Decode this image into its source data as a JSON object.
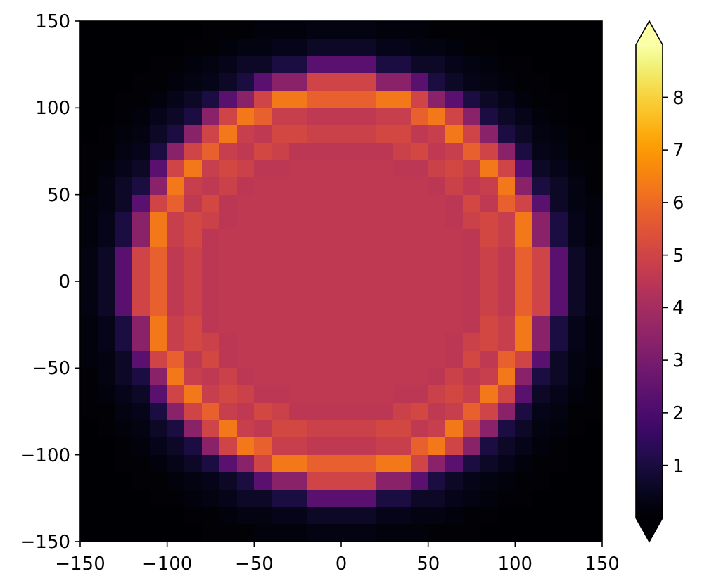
{
  "chart_data": {
    "type": "heatmap",
    "xlim": [
      -150,
      150
    ],
    "ylim": [
      -150,
      150
    ],
    "xticks": [
      -150,
      -100,
      -50,
      0,
      50,
      100,
      150
    ],
    "yticks": [
      -150,
      -100,
      -50,
      0,
      50,
      100,
      150
    ],
    "clim": [
      0,
      9
    ],
    "cticks": [
      1,
      2,
      3,
      4,
      5,
      6,
      7,
      8
    ],
    "cells": [
      [
        0,
        0,
        0,
        0,
        0,
        0,
        0,
        0.1,
        0.1,
        0.1,
        0.2,
        0.2,
        0.2,
        0.3,
        0.3,
        0.3,
        0.3,
        0.2,
        0.2,
        0.2,
        0.1,
        0.1,
        0.1,
        0,
        0,
        0,
        0,
        0,
        0,
        0
      ],
      [
        0,
        0,
        0,
        0,
        0,
        0,
        0.1,
        0.1,
        0.2,
        0.3,
        0.3,
        0.4,
        0.4,
        0.6,
        0.6,
        0.6,
        0.6,
        0.4,
        0.4,
        0.3,
        0.3,
        0.2,
        0.1,
        0.1,
        0,
        0,
        0,
        0,
        0,
        0
      ],
      [
        0,
        0,
        0,
        0,
        0.1,
        0.1,
        0.2,
        0.3,
        0.4,
        0.6,
        0.6,
        1,
        1,
        2.3,
        2.3,
        2.3,
        2.3,
        1,
        1,
        0.6,
        0.6,
        0.4,
        0.3,
        0.2,
        0.1,
        0.1,
        0,
        0,
        0,
        0
      ],
      [
        0,
        0,
        0,
        0.1,
        0.1,
        0.2,
        0.3,
        0.4,
        0.6,
        1,
        2.3,
        3.4,
        3.4,
        5,
        5,
        5,
        5,
        3.4,
        3.4,
        2.3,
        1,
        0.6,
        0.4,
        0.3,
        0.2,
        0.1,
        0.1,
        0,
        0,
        0
      ],
      [
        0,
        0,
        0.1,
        0.1,
        0.2,
        0.4,
        0.6,
        1,
        2.3,
        3.4,
        5,
        6.3,
        6.3,
        5.8,
        5.8,
        5.8,
        5.8,
        6.3,
        6.3,
        5,
        3.4,
        2.3,
        1,
        0.6,
        0.4,
        0.2,
        0.1,
        0.1,
        0,
        0
      ],
      [
        0,
        0,
        0.1,
        0.2,
        0.4,
        0.6,
        1,
        3.4,
        5,
        6.3,
        5.8,
        4.8,
        4.8,
        4.6,
        4.6,
        4.6,
        4.6,
        4.8,
        4.8,
        5.8,
        6.3,
        5,
        3.4,
        1,
        0.6,
        0.4,
        0.2,
        0.1,
        0,
        0
      ],
      [
        0,
        0.1,
        0.2,
        0.3,
        0.6,
        1,
        3.4,
        5,
        6.3,
        4.8,
        4.6,
        5.1,
        5.1,
        4.9,
        4.9,
        4.9,
        4.9,
        5.1,
        5.1,
        4.6,
        4.8,
        6.3,
        5,
        3.4,
        1,
        0.6,
        0.3,
        0.2,
        0.1,
        0
      ],
      [
        0.1,
        0.1,
        0.3,
        0.4,
        1,
        3.4,
        5,
        5.8,
        4.8,
        4.6,
        5.1,
        4.9,
        4.5,
        4.5,
        4.5,
        4.5,
        4.5,
        4.5,
        4.9,
        5.1,
        4.6,
        4.8,
        5.8,
        5,
        3.4,
        1,
        0.4,
        0.3,
        0.1,
        0.1
      ],
      [
        0.1,
        0.2,
        0.4,
        0.6,
        2.3,
        5,
        6.3,
        4.8,
        5.1,
        4.9,
        4.5,
        4.5,
        4.6,
        4.6,
        4.6,
        4.6,
        4.6,
        4.6,
        4.5,
        4.5,
        4.9,
        5.1,
        4.8,
        6.3,
        5,
        2.3,
        0.6,
        0.4,
        0.2,
        0.1
      ],
      [
        0.1,
        0.3,
        0.6,
        1,
        3.4,
        6.3,
        4.8,
        4.6,
        4.9,
        4.5,
        4.6,
        4.6,
        4.6,
        4.6,
        4.6,
        4.6,
        4.6,
        4.6,
        4.6,
        4.6,
        4.5,
        4.9,
        4.6,
        4.8,
        6.3,
        3.4,
        1,
        0.6,
        0.3,
        0.1
      ],
      [
        0.2,
        0.3,
        0.6,
        2.3,
        5,
        5.8,
        4.6,
        5.1,
        4.5,
        4.6,
        4.6,
        4.6,
        4.6,
        4.6,
        4.6,
        4.6,
        4.6,
        4.6,
        4.6,
        4.6,
        4.6,
        4.5,
        5.1,
        4.6,
        5.8,
        5,
        2.3,
        0.6,
        0.3,
        0.2
      ],
      [
        0.2,
        0.4,
        1,
        3.4,
        6.3,
        4.8,
        5.1,
        4.9,
        4.5,
        4.6,
        4.6,
        4.6,
        4.6,
        4.6,
        4.6,
        4.6,
        4.6,
        4.6,
        4.6,
        4.6,
        4.6,
        4.5,
        4.9,
        5.1,
        4.8,
        6.3,
        3.4,
        1,
        0.4,
        0.2
      ],
      [
        0.2,
        0.4,
        1,
        3.4,
        6.3,
        4.8,
        5.1,
        4.5,
        4.6,
        4.6,
        4.6,
        4.6,
        4.6,
        4.6,
        4.6,
        4.6,
        4.6,
        4.6,
        4.6,
        4.6,
        4.6,
        4.6,
        4.5,
        5.1,
        4.8,
        6.3,
        3.4,
        1,
        0.4,
        0.2
      ],
      [
        0.3,
        0.6,
        2.3,
        5,
        5.8,
        4.6,
        4.9,
        4.5,
        4.6,
        4.6,
        4.6,
        4.6,
        4.6,
        4.6,
        4.6,
        4.6,
        4.6,
        4.6,
        4.6,
        4.6,
        4.6,
        4.6,
        4.5,
        4.9,
        4.6,
        5.8,
        5,
        2.3,
        0.6,
        0.3
      ],
      [
        0.3,
        0.6,
        2.3,
        5,
        5.8,
        4.6,
        4.9,
        4.5,
        4.6,
        4.6,
        4.6,
        4.6,
        4.6,
        4.6,
        4.6,
        4.6,
        4.6,
        4.6,
        4.6,
        4.6,
        4.6,
        4.6,
        4.5,
        4.9,
        4.6,
        5.8,
        5,
        2.3,
        0.6,
        0.3
      ],
      [
        0.3,
        0.6,
        2.3,
        5,
        5.8,
        4.6,
        4.9,
        4.5,
        4.6,
        4.6,
        4.6,
        4.6,
        4.6,
        4.6,
        4.6,
        4.6,
        4.6,
        4.6,
        4.6,
        4.6,
        4.6,
        4.6,
        4.5,
        4.9,
        4.6,
        5.8,
        5,
        2.3,
        0.6,
        0.3
      ],
      [
        0.3,
        0.6,
        2.3,
        5,
        5.8,
        4.6,
        4.9,
        4.5,
        4.6,
        4.6,
        4.6,
        4.6,
        4.6,
        4.6,
        4.6,
        4.6,
        4.6,
        4.6,
        4.6,
        4.6,
        4.6,
        4.6,
        4.5,
        4.9,
        4.6,
        5.8,
        5,
        2.3,
        0.6,
        0.3
      ],
      [
        0.2,
        0.4,
        1,
        3.4,
        6.3,
        4.8,
        5.1,
        4.5,
        4.6,
        4.6,
        4.6,
        4.6,
        4.6,
        4.6,
        4.6,
        4.6,
        4.6,
        4.6,
        4.6,
        4.6,
        4.6,
        4.6,
        4.5,
        5.1,
        4.8,
        6.3,
        3.4,
        1,
        0.4,
        0.2
      ],
      [
        0.2,
        0.4,
        1,
        3.4,
        6.3,
        4.8,
        5.1,
        4.9,
        4.5,
        4.6,
        4.6,
        4.6,
        4.6,
        4.6,
        4.6,
        4.6,
        4.6,
        4.6,
        4.6,
        4.6,
        4.6,
        4.5,
        4.9,
        5.1,
        4.8,
        6.3,
        3.4,
        1,
        0.4,
        0.2
      ],
      [
        0.2,
        0.3,
        0.6,
        2.3,
        5,
        5.8,
        4.6,
        5.1,
        4.5,
        4.6,
        4.6,
        4.6,
        4.6,
        4.6,
        4.6,
        4.6,
        4.6,
        4.6,
        4.6,
        4.6,
        4.6,
        4.5,
        5.1,
        4.6,
        5.8,
        5,
        2.3,
        0.6,
        0.3,
        0.2
      ],
      [
        0.1,
        0.3,
        0.6,
        1,
        3.4,
        6.3,
        4.8,
        4.6,
        4.9,
        4.5,
        4.6,
        4.6,
        4.6,
        4.6,
        4.6,
        4.6,
        4.6,
        4.6,
        4.6,
        4.6,
        4.5,
        4.9,
        4.6,
        4.8,
        6.3,
        3.4,
        1,
        0.6,
        0.3,
        0.1
      ],
      [
        0.1,
        0.2,
        0.4,
        0.6,
        2.3,
        5,
        6.3,
        4.8,
        5.1,
        4.9,
        4.5,
        4.5,
        4.6,
        4.6,
        4.6,
        4.6,
        4.6,
        4.6,
        4.5,
        4.5,
        4.9,
        5.1,
        4.8,
        6.3,
        5,
        2.3,
        0.6,
        0.4,
        0.2,
        0.1
      ],
      [
        0.1,
        0.1,
        0.3,
        0.4,
        1,
        3.4,
        5,
        5.8,
        4.8,
        4.6,
        5.1,
        4.9,
        4.5,
        4.5,
        4.5,
        4.5,
        4.5,
        4.5,
        4.9,
        5.1,
        4.6,
        4.8,
        5.8,
        5,
        3.4,
        1,
        0.4,
        0.3,
        0.1,
        0.1
      ],
      [
        0,
        0.1,
        0.2,
        0.3,
        0.6,
        1,
        3.4,
        5,
        6.3,
        4.8,
        4.6,
        5.1,
        5.1,
        4.9,
        4.9,
        4.9,
        4.9,
        5.1,
        5.1,
        4.6,
        4.8,
        6.3,
        5,
        3.4,
        1,
        0.6,
        0.3,
        0.2,
        0.1,
        0
      ],
      [
        0,
        0,
        0.1,
        0.2,
        0.4,
        0.6,
        1,
        3.4,
        5,
        6.3,
        5.8,
        4.8,
        4.8,
        4.6,
        4.6,
        4.6,
        4.6,
        4.8,
        4.8,
        5.8,
        6.3,
        5,
        3.4,
        1,
        0.6,
        0.4,
        0.2,
        0.1,
        0,
        0
      ],
      [
        0,
        0,
        0.1,
        0.1,
        0.2,
        0.4,
        0.6,
        1,
        2.3,
        3.4,
        5,
        6.3,
        6.3,
        5.8,
        5.8,
        5.8,
        5.8,
        6.3,
        6.3,
        5,
        3.4,
        2.3,
        1,
        0.6,
        0.4,
        0.2,
        0.1,
        0.1,
        0,
        0
      ],
      [
        0,
        0,
        0,
        0.1,
        0.1,
        0.2,
        0.3,
        0.4,
        0.6,
        1,
        2.3,
        3.4,
        3.4,
        5,
        5,
        5,
        5,
        3.4,
        3.4,
        2.3,
        1,
        0.6,
        0.4,
        0.3,
        0.2,
        0.1,
        0.1,
        0,
        0,
        0
      ],
      [
        0,
        0,
        0,
        0,
        0.1,
        0.1,
        0.2,
        0.3,
        0.4,
        0.6,
        0.6,
        1,
        1,
        2.3,
        2.3,
        2.3,
        2.3,
        1,
        1,
        0.6,
        0.6,
        0.4,
        0.3,
        0.2,
        0.1,
        0.1,
        0,
        0,
        0,
        0
      ],
      [
        0,
        0,
        0,
        0,
        0,
        0,
        0.1,
        0.1,
        0.2,
        0.3,
        0.3,
        0.4,
        0.4,
        0.6,
        0.6,
        0.6,
        0.6,
        0.4,
        0.4,
        0.3,
        0.3,
        0.2,
        0.1,
        0.1,
        0,
        0,
        0,
        0,
        0,
        0
      ],
      [
        0,
        0,
        0,
        0,
        0,
        0,
        0,
        0.1,
        0.1,
        0.1,
        0.2,
        0.2,
        0.2,
        0.3,
        0.3,
        0.3,
        0.3,
        0.2,
        0.2,
        0.2,
        0.1,
        0.1,
        0.1,
        0,
        0,
        0,
        0,
        0,
        0,
        0
      ]
    ]
  }
}
